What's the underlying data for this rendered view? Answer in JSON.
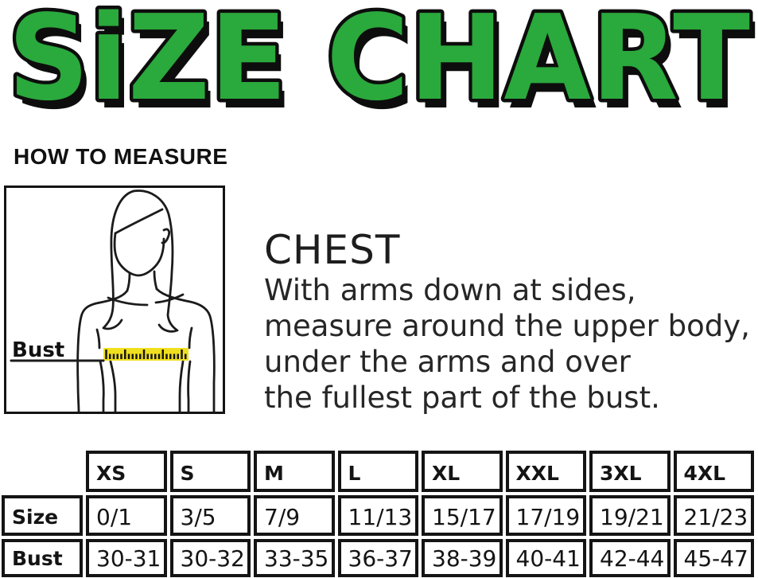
{
  "title": {
    "text": "SiZE CHART",
    "fill_color": "#2aa93c",
    "outline_color": "#0d0d0d"
  },
  "how_to_measure": {
    "heading": "HOW TO MEASURE"
  },
  "figure": {
    "bust_label": "Bust",
    "tape_color": "#f0df1f"
  },
  "chest": {
    "heading": "CHEST",
    "lines": [
      "With arms down at sides,",
      "measure around the upper body,",
      "under the arms and over",
      "the fullest part of the bust."
    ]
  },
  "size_table": {
    "columns": [
      "XS",
      "S",
      "M",
      "L",
      "XL",
      "XXL",
      "3XL",
      "4XL"
    ],
    "rows": [
      {
        "label": "Size",
        "values": [
          "0/1",
          "3/5",
          "7/9",
          "11/13",
          "15/17",
          "17/19",
          "19/21",
          "21/23"
        ]
      },
      {
        "label": "Bust",
        "values": [
          "30-31",
          "30-32",
          "33-35",
          "36-37",
          "38-39",
          "40-41",
          "42-44",
          "45-47"
        ]
      }
    ]
  }
}
